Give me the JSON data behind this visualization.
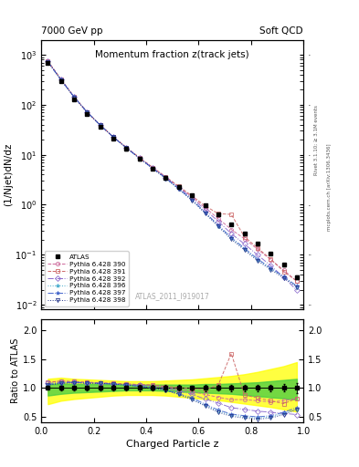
{
  "title": "Momentum fraction z(track jets)",
  "top_left_label": "7000 GeV pp",
  "top_right_label": "Soft QCD",
  "xlabel": "Charged Particle z",
  "ylabel_main": "(1/Njet)dN/dz",
  "ylabel_ratio": "Ratio to ATLAS",
  "watermark": "ATLAS_2011_I919017",
  "right_label1": "Rivet 3.1.10; ≥ 3.1M events",
  "right_label2": "mcplots.cern.ch [arXiv:1306.3436]",
  "series": [
    {
      "label": "Pythia 6.428 390",
      "color": "#cc6699",
      "marker": "o",
      "ls": "--"
    },
    {
      "label": "Pythia 6.428 391",
      "color": "#cc6666",
      "marker": "s",
      "ls": "--"
    },
    {
      "label": "Pythia 6.428 392",
      "color": "#8866cc",
      "marker": "D",
      "ls": "-."
    },
    {
      "label": "Pythia 6.428 396",
      "color": "#44aacc",
      "marker": "*",
      "ls": ":"
    },
    {
      "label": "Pythia 6.428 397",
      "color": "#4466cc",
      "marker": "*",
      "ls": "-."
    },
    {
      "label": "Pythia 6.428 398",
      "color": "#223388",
      "marker": "v",
      "ls": ":"
    }
  ],
  "z_vals": [
    0.025,
    0.075,
    0.125,
    0.175,
    0.225,
    0.275,
    0.325,
    0.375,
    0.425,
    0.475,
    0.525,
    0.575,
    0.625,
    0.675,
    0.725,
    0.775,
    0.825,
    0.875,
    0.925,
    0.975
  ],
  "atlas_y": [
    680,
    290,
    130,
    65,
    36,
    21,
    13,
    8.2,
    5.3,
    3.5,
    2.3,
    1.52,
    0.98,
    0.63,
    0.4,
    0.26,
    0.165,
    0.105,
    0.063,
    0.036
  ],
  "atlas_yerr_lo": [
    20,
    10,
    5,
    3,
    1.5,
    1.0,
    0.6,
    0.4,
    0.25,
    0.17,
    0.11,
    0.07,
    0.05,
    0.03,
    0.02,
    0.013,
    0.009,
    0.006,
    0.004,
    0.003
  ],
  "atlas_yerr_hi": [
    20,
    10,
    5,
    3,
    1.5,
    1.0,
    0.6,
    0.4,
    0.25,
    0.17,
    0.11,
    0.07,
    0.05,
    0.03,
    0.02,
    0.013,
    0.009,
    0.006,
    0.004,
    0.003
  ],
  "green_band_lo": [
    0.87,
    0.9,
    0.92,
    0.93,
    0.94,
    0.95,
    0.96,
    0.96,
    0.96,
    0.95,
    0.94,
    0.93,
    0.92,
    0.91,
    0.9,
    0.88,
    0.86,
    0.84,
    0.82,
    0.8
  ],
  "green_band_hi": [
    1.07,
    1.08,
    1.07,
    1.07,
    1.07,
    1.07,
    1.06,
    1.06,
    1.06,
    1.06,
    1.06,
    1.06,
    1.07,
    1.07,
    1.08,
    1.09,
    1.1,
    1.12,
    1.14,
    1.16
  ],
  "yellow_band_lo": [
    0.72,
    0.78,
    0.81,
    0.83,
    0.85,
    0.87,
    0.88,
    0.88,
    0.88,
    0.87,
    0.85,
    0.83,
    0.81,
    0.79,
    0.76,
    0.73,
    0.7,
    0.67,
    0.63,
    0.59
  ],
  "yellow_band_hi": [
    1.16,
    1.18,
    1.16,
    1.15,
    1.14,
    1.13,
    1.12,
    1.12,
    1.12,
    1.13,
    1.14,
    1.15,
    1.17,
    1.19,
    1.21,
    1.24,
    1.28,
    1.33,
    1.38,
    1.45
  ],
  "series_ratios": [
    [
      1.1,
      1.12,
      1.11,
      1.1,
      1.09,
      1.08,
      1.07,
      1.06,
      1.05,
      1.02,
      0.98,
      0.94,
      0.89,
      0.84,
      0.8,
      0.8,
      0.78,
      0.76,
      0.78,
      0.82
    ],
    [
      1.1,
      1.12,
      1.11,
      1.1,
      1.09,
      1.08,
      1.07,
      1.06,
      1.05,
      1.03,
      1.01,
      0.99,
      0.97,
      1.05,
      1.6,
      0.88,
      0.83,
      0.78,
      0.73,
      0.82
    ],
    [
      1.08,
      1.1,
      1.1,
      1.09,
      1.08,
      1.07,
      1.06,
      1.05,
      1.03,
      1.0,
      0.95,
      0.89,
      0.81,
      0.74,
      0.66,
      0.63,
      0.6,
      0.58,
      0.56,
      0.54
    ],
    [
      1.06,
      1.09,
      1.1,
      1.09,
      1.08,
      1.07,
      1.05,
      1.03,
      1.0,
      0.96,
      0.89,
      0.81,
      0.7,
      0.6,
      0.53,
      0.5,
      0.48,
      0.5,
      0.56,
      0.63
    ],
    [
      1.06,
      1.09,
      1.1,
      1.09,
      1.08,
      1.07,
      1.05,
      1.03,
      1.0,
      0.97,
      0.9,
      0.83,
      0.72,
      0.62,
      0.55,
      0.52,
      0.5,
      0.52,
      0.58,
      0.66
    ],
    [
      1.05,
      1.08,
      1.09,
      1.08,
      1.08,
      1.07,
      1.05,
      1.03,
      1.0,
      0.96,
      0.89,
      0.8,
      0.69,
      0.58,
      0.51,
      0.48,
      0.46,
      0.48,
      0.54,
      0.63
    ]
  ],
  "ylim_main": [
    0.008,
    2000
  ],
  "ylim_ratio": [
    0.4,
    2.2
  ],
  "yticks_ratio": [
    0.5,
    1.0,
    1.5,
    2.0
  ]
}
